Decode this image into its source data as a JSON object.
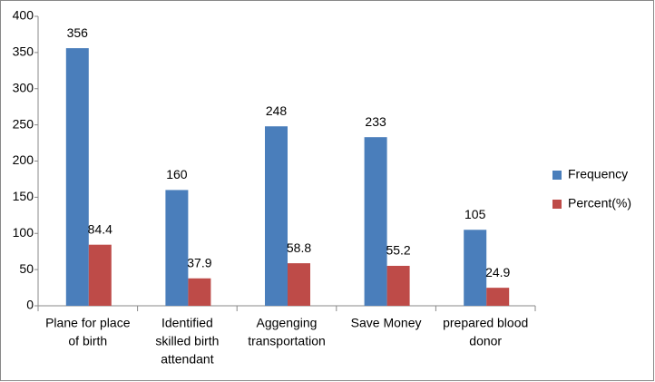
{
  "chart_data": {
    "type": "bar",
    "categories": [
      [
        "Plane for place",
        "of birth"
      ],
      [
        "Identified",
        "skilled birth",
        "attendant"
      ],
      [
        "Aggenging",
        "transportation"
      ],
      [
        "Save Money"
      ],
      [
        "prepared blood",
        "donor"
      ]
    ],
    "series": [
      {
        "name": "Frequency",
        "color": "#4a7ebb",
        "values": [
          356,
          160,
          248,
          233,
          105
        ]
      },
      {
        "name": "Percent(%)",
        "color": "#be4b48",
        "values": [
          84.4,
          37.9,
          58.8,
          55.2,
          24.9
        ]
      }
    ],
    "ylim": [
      0,
      400
    ],
    "yticks": [
      0,
      50,
      100,
      150,
      200,
      250,
      300,
      350,
      400
    ],
    "grid": false,
    "legend": "right",
    "data_labels": true
  }
}
